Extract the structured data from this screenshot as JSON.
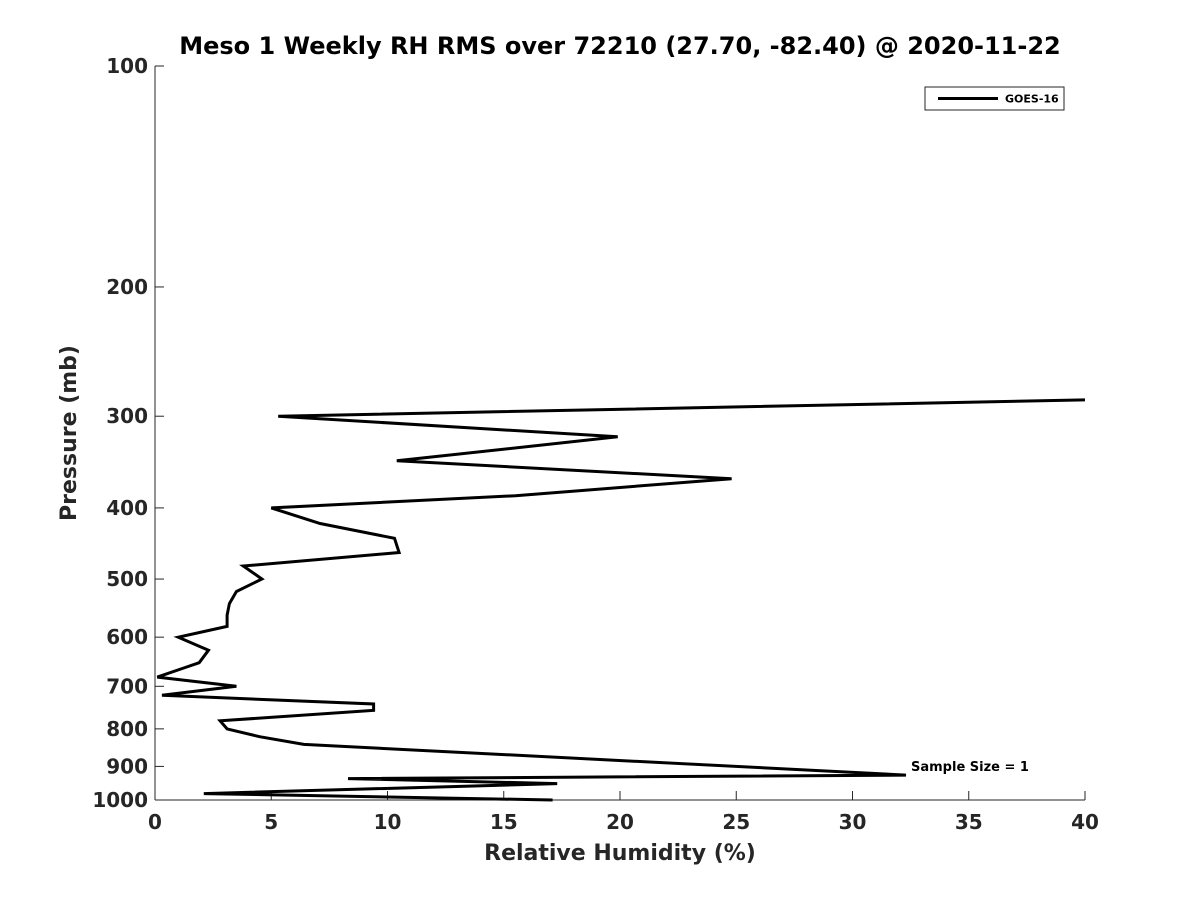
{
  "chart_data": {
    "type": "line",
    "title": "Meso 1 Weekly RH RMS over 72210 (27.70, -82.40) @ 2020-11-22",
    "xlabel": "Relative Humidity (%)",
    "ylabel": "Pressure (mb)",
    "xlim": [
      0,
      40
    ],
    "ylim": [
      100,
      1000
    ],
    "yscale": "log",
    "y_reversed": true,
    "xticks": [
      "0",
      "5",
      "10",
      "15",
      "20",
      "25",
      "30",
      "35",
      "40"
    ],
    "yticks": [
      "100",
      "200",
      "300",
      "400",
      "500",
      "600",
      "700",
      "800",
      "900",
      "1000"
    ],
    "grid": false,
    "legend_position": "top-right",
    "line_color": "#000000",
    "series": [
      {
        "name": "GOES-16",
        "points": [
          {
            "x": 40.0,
            "y": 285
          },
          {
            "x": 5.3,
            "y": 300
          },
          {
            "x": 19.9,
            "y": 320
          },
          {
            "x": 10.4,
            "y": 345
          },
          {
            "x": 24.8,
            "y": 365
          },
          {
            "x": 15.5,
            "y": 385
          },
          {
            "x": 5.0,
            "y": 400
          },
          {
            "x": 7.1,
            "y": 420
          },
          {
            "x": 10.3,
            "y": 440
          },
          {
            "x": 10.5,
            "y": 460
          },
          {
            "x": 3.8,
            "y": 480
          },
          {
            "x": 4.6,
            "y": 500
          },
          {
            "x": 3.5,
            "y": 520
          },
          {
            "x": 3.2,
            "y": 540
          },
          {
            "x": 3.1,
            "y": 560
          },
          {
            "x": 3.1,
            "y": 580
          },
          {
            "x": 1.0,
            "y": 600
          },
          {
            "x": 2.3,
            "y": 625
          },
          {
            "x": 1.9,
            "y": 650
          },
          {
            "x": 1.3,
            "y": 660
          },
          {
            "x": 0.1,
            "y": 680
          },
          {
            "x": 3.5,
            "y": 700
          },
          {
            "x": 0.3,
            "y": 720
          },
          {
            "x": 9.4,
            "y": 740
          },
          {
            "x": 9.4,
            "y": 755
          },
          {
            "x": 2.8,
            "y": 780
          },
          {
            "x": 3.1,
            "y": 800
          },
          {
            "x": 4.5,
            "y": 820
          },
          {
            "x": 6.4,
            "y": 840
          },
          {
            "x": 32.3,
            "y": 925
          },
          {
            "x": 8.3,
            "y": 935
          },
          {
            "x": 17.3,
            "y": 950
          },
          {
            "x": 2.1,
            "y": 980
          },
          {
            "x": 17.1,
            "y": 1000
          }
        ]
      }
    ],
    "annotation": "Sample Size = 1"
  }
}
